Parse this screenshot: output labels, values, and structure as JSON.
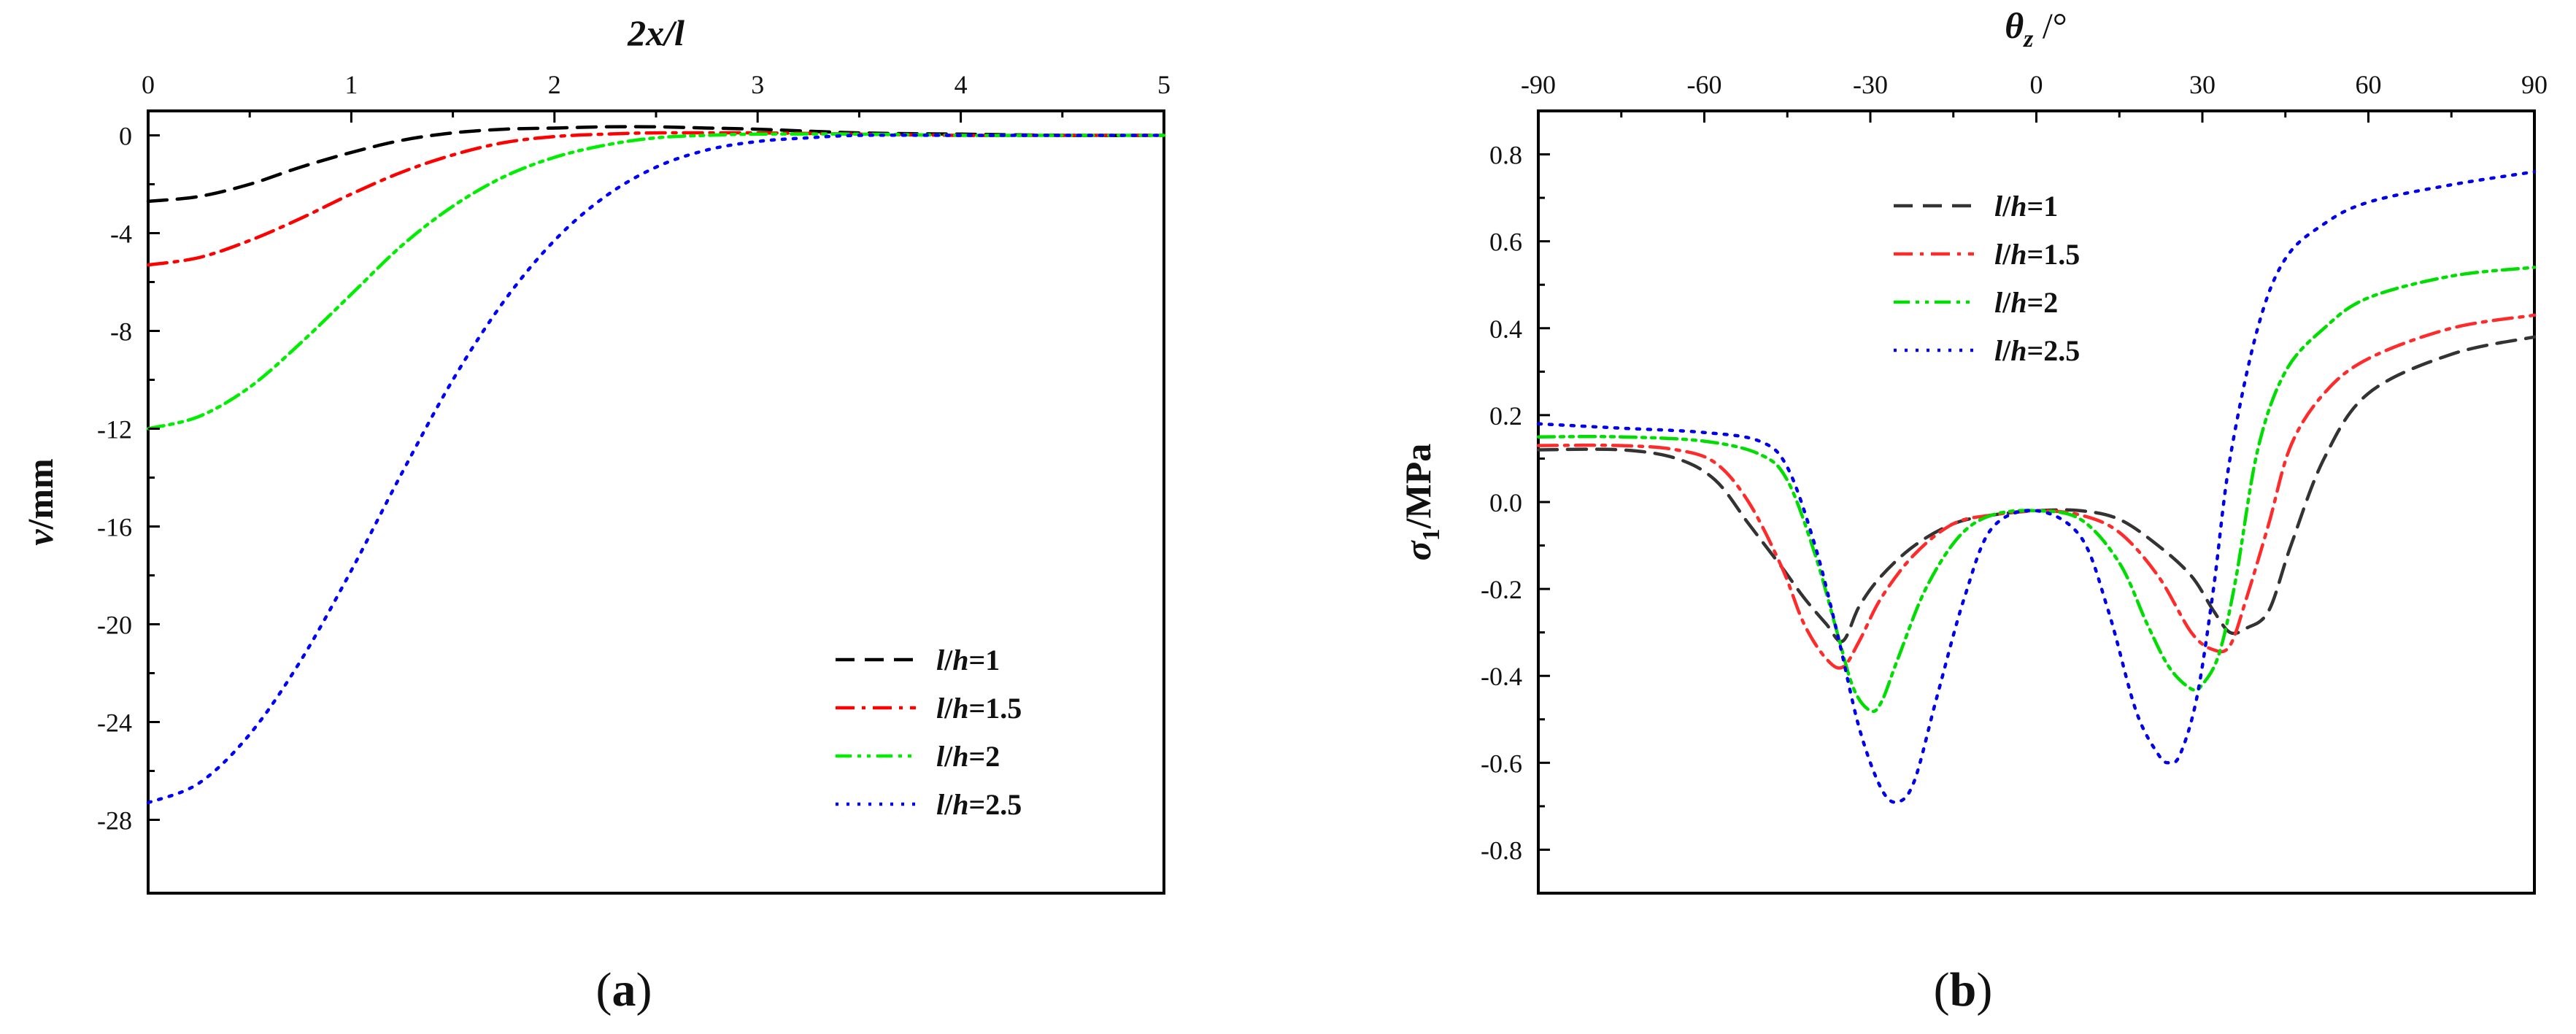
{
  "charts": [
    {
      "id": "a",
      "label_open": "(",
      "label_letter": "a",
      "label_close": ")",
      "chart_data": {
        "type": "line",
        "title": "",
        "xlabel": "2x/l",
        "ylabel_parts": {
          "var": "v",
          "rest": "/mm"
        },
        "xlim": [
          0,
          5
        ],
        "ylim": [
          -31,
          1
        ],
        "xticks": [
          0,
          1,
          2,
          3,
          4,
          5
        ],
        "yticks": [
          0,
          -4,
          -8,
          -12,
          -16,
          -20,
          -24,
          -28
        ],
        "legend_position": "lower-right",
        "series": [
          {
            "name": "l/h=1",
            "label_parts": [
              "l",
              "/",
              "h",
              "=1"
            ],
            "color": "#000000",
            "dash": "dashed",
            "x": [
              0,
              0.25,
              0.5,
              0.75,
              1.0,
              1.25,
              1.5,
              1.75,
              2.0,
              2.25,
              2.5,
              2.75,
              3.0,
              3.5,
              4.0,
              4.5,
              5.0
            ],
            "y": [
              -2.7,
              -2.5,
              -2.0,
              -1.3,
              -0.7,
              -0.2,
              0.1,
              0.25,
              0.3,
              0.35,
              0.35,
              0.3,
              0.25,
              0.1,
              0.05,
              0.0,
              0.0
            ]
          },
          {
            "name": "l/h=1.5",
            "label_parts": [
              "l",
              "/",
              "h",
              "=1.5"
            ],
            "color": "#ff0000",
            "dash": "dashdot",
            "x": [
              0,
              0.25,
              0.5,
              0.75,
              1.0,
              1.25,
              1.5,
              1.75,
              2.0,
              2.25,
              2.5,
              3.0,
              3.5,
              4.0,
              4.5,
              5.0
            ],
            "y": [
              -5.3,
              -5.0,
              -4.3,
              -3.4,
              -2.4,
              -1.5,
              -0.8,
              -0.3,
              -0.05,
              0.05,
              0.1,
              0.1,
              0.05,
              0.0,
              0.0,
              0.0
            ]
          },
          {
            "name": "l/h=2",
            "label_parts": [
              "l",
              "/",
              "h",
              "=2"
            ],
            "color": "#00ee00",
            "dash": "dashdotdot",
            "x": [
              0,
              0.25,
              0.5,
              0.75,
              1.0,
              1.25,
              1.5,
              1.75,
              2.0,
              2.25,
              2.5,
              2.75,
              3.0,
              3.5,
              4.0,
              4.5,
              5.0
            ],
            "y": [
              -12.0,
              -11.5,
              -10.3,
              -8.5,
              -6.5,
              -4.5,
              -2.9,
              -1.7,
              -0.9,
              -0.4,
              -0.1,
              0.0,
              0.05,
              0.05,
              0.0,
              0.0,
              0.0
            ]
          },
          {
            "name": "l/h=2.5",
            "label_parts": [
              "l",
              "/",
              "h",
              "=2.5"
            ],
            "color": "#0000ff",
            "dash": "dotted",
            "x": [
              0,
              0.25,
              0.5,
              0.75,
              1.0,
              1.25,
              1.5,
              1.75,
              2.0,
              2.25,
              2.5,
              2.75,
              3.0,
              3.25,
              3.5,
              4.0,
              4.5,
              5.0
            ],
            "y": [
              -27.3,
              -26.5,
              -24.5,
              -21.5,
              -17.8,
              -13.8,
              -10.0,
              -6.8,
              -4.3,
              -2.5,
              -1.3,
              -0.6,
              -0.25,
              -0.1,
              0.0,
              0.0,
              0.0,
              0.0
            ]
          }
        ]
      }
    },
    {
      "id": "b",
      "label_open": "(",
      "label_letter": "b",
      "label_close": ")",
      "chart_data": {
        "type": "line",
        "title": "",
        "xlabel_parts": {
          "var": "θ",
          "sub": "z",
          "rest": " /°"
        },
        "ylabel_parts": {
          "var": "σ",
          "sub": "1",
          "rest": "/MPa"
        },
        "xlim": [
          -90,
          90
        ],
        "ylim": [
          -0.9,
          0.9
        ],
        "xticks": [
          -90,
          -60,
          -30,
          0,
          30,
          60,
          90
        ],
        "yticks": [
          0.8,
          0.6,
          0.4,
          0.2,
          0.0,
          -0.2,
          -0.4,
          -0.6,
          -0.8
        ],
        "ytick_labels": [
          "0.8",
          "0.6",
          "0.4",
          "0.2",
          "0.0",
          "-0.2",
          "-0.4",
          "-0.6",
          "-0.8"
        ],
        "legend_position": "upper-left",
        "series": [
          {
            "name": "l/h=1",
            "label_parts": [
              "l",
              "/",
              "h",
              "=1"
            ],
            "color": "#333333",
            "dash": "dashed",
            "x": [
              -90,
              -75,
              -65,
              -58,
              -52,
              -46,
              -42,
              -38,
              -35,
              -32,
              -28,
              -22,
              -15,
              -8,
              0,
              8,
              15,
              22,
              28,
              32,
              35,
              38,
              42,
              46,
              52,
              60,
              75,
              90
            ],
            "y": [
              0.12,
              0.12,
              0.1,
              0.05,
              -0.05,
              -0.15,
              -0.22,
              -0.28,
              -0.32,
              -0.24,
              -0.17,
              -0.1,
              -0.05,
              -0.03,
              -0.02,
              -0.02,
              -0.04,
              -0.1,
              -0.17,
              -0.25,
              -0.3,
              -0.29,
              -0.25,
              -0.1,
              0.1,
              0.25,
              0.34,
              0.38
            ]
          },
          {
            "name": "l/h=1.5",
            "label_parts": [
              "l",
              "/",
              "h",
              "=1.5"
            ],
            "color": "#ff2a2a",
            "dash": "dashdot",
            "x": [
              -90,
              -75,
              -65,
              -58,
              -52,
              -46,
              -42,
              -38,
              -35,
              -32,
              -28,
              -22,
              -15,
              -8,
              0,
              8,
              15,
              22,
              28,
              32,
              35,
              38,
              42,
              46,
              52,
              60,
              75,
              90
            ],
            "y": [
              0.13,
              0.13,
              0.12,
              0.09,
              0.0,
              -0.15,
              -0.28,
              -0.36,
              -0.38,
              -0.32,
              -0.22,
              -0.12,
              -0.05,
              -0.03,
              -0.02,
              -0.03,
              -0.07,
              -0.17,
              -0.3,
              -0.34,
              -0.33,
              -0.22,
              -0.05,
              0.13,
              0.25,
              0.33,
              0.4,
              0.43
            ]
          },
          {
            "name": "l/h=2",
            "label_parts": [
              "l",
              "/",
              "h",
              "=2"
            ],
            "color": "#00dd00",
            "dash": "dashdotdot",
            "x": [
              -90,
              -75,
              -60,
              -50,
              -45,
              -40,
              -36,
              -33,
              -30,
              -28,
              -25,
              -20,
              -14,
              -8,
              0,
              8,
              15,
              20,
              24,
              28,
              30,
              33,
              36,
              40,
              45,
              52,
              60,
              75,
              90
            ],
            "y": [
              0.15,
              0.15,
              0.14,
              0.11,
              0.05,
              -0.12,
              -0.3,
              -0.43,
              -0.48,
              -0.46,
              -0.36,
              -0.2,
              -0.08,
              -0.03,
              -0.02,
              -0.04,
              -0.14,
              -0.28,
              -0.38,
              -0.43,
              -0.42,
              -0.35,
              -0.18,
              0.12,
              0.3,
              0.4,
              0.47,
              0.52,
              0.54
            ]
          },
          {
            "name": "l/h=2.5",
            "label_parts": [
              "l",
              "/",
              "h",
              "=2.5"
            ],
            "color": "#0000ee",
            "dash": "dotted",
            "x": [
              -90,
              -75,
              -60,
              -50,
              -45,
              -40,
              -36,
              -32,
              -28,
              -25,
              -22,
              -18,
              -13,
              -8,
              0,
              8,
              13,
              18,
              22,
              24,
              26,
              29,
              32,
              35,
              40,
              45,
              52,
              60,
              75,
              90
            ],
            "y": [
              0.18,
              0.17,
              0.16,
              0.14,
              0.08,
              -0.1,
              -0.3,
              -0.52,
              -0.66,
              -0.69,
              -0.64,
              -0.45,
              -0.22,
              -0.06,
              -0.02,
              -0.08,
              -0.25,
              -0.48,
              -0.58,
              -0.6,
              -0.58,
              -0.45,
              -0.2,
              0.1,
              0.4,
              0.56,
              0.64,
              0.69,
              0.73,
              0.76
            ]
          }
        ]
      }
    }
  ]
}
